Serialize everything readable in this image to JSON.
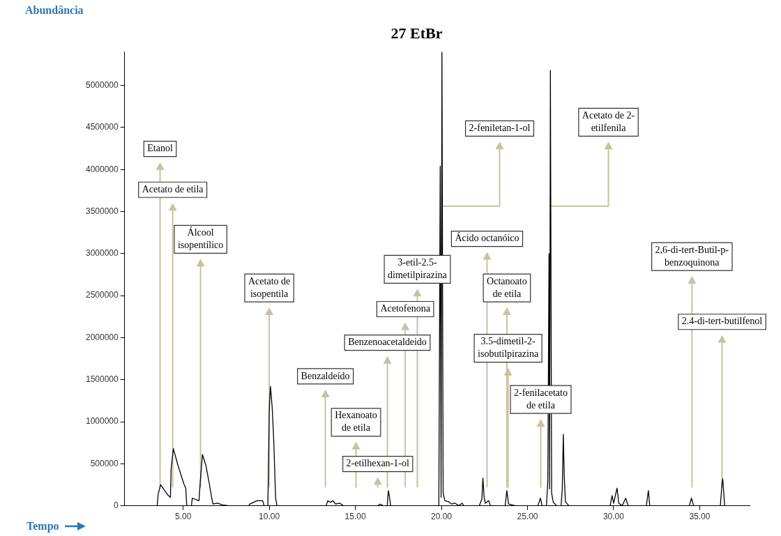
{
  "chart_data": {
    "type": "line",
    "title": "27 EtBr",
    "xlabel": "Tempo",
    "ylabel": "Abundância",
    "xlim": [
      1.6,
      37.9
    ],
    "ylim": [
      0,
      5400000
    ],
    "xticks": [
      {
        "value": 5,
        "label": "5.00"
      },
      {
        "value": 10,
        "label": "10.00"
      },
      {
        "value": 15,
        "label": "15.00"
      },
      {
        "value": 20,
        "label": "20.00"
      },
      {
        "value": 25,
        "label": "25.00"
      },
      {
        "value": 30,
        "label": "30.00"
      },
      {
        "value": 35,
        "label": "35.00"
      }
    ],
    "yticks": [
      0,
      500000,
      1000000,
      1500000,
      2000000,
      2500000,
      3000000,
      3500000,
      4000000,
      4500000,
      5000000
    ],
    "series": [
      {
        "color": "#000000",
        "x": [
          1.6,
          3.49,
          3.55,
          3.69,
          4.1,
          4.26,
          4.3,
          4.43,
          4.7,
          5.04,
          5.15,
          5.21,
          5.48,
          5.53,
          5.92,
          5.99,
          6.12,
          6.32,
          6.52,
          6.66,
          6.73,
          7.0,
          7.27,
          7.67,
          8.8,
          8.88,
          9.29,
          9.62,
          9.7,
          9.92,
          10.0,
          10.07,
          10.17,
          10.26,
          10.37,
          10.45,
          13.3,
          13.4,
          13.55,
          13.7,
          13.85,
          14.1,
          14.3,
          16.3,
          16.45,
          16.6,
          16.85,
          16.92,
          16.98,
          17.05,
          19.85,
          19.93,
          19.98,
          20.03,
          20.1,
          20.2,
          20.4,
          20.6,
          20.8,
          21.0,
          21.2,
          21.3,
          22.2,
          22.35,
          22.41,
          22.48,
          22.55,
          22.75,
          22.85,
          23.7,
          23.8,
          23.9,
          24.3,
          25.6,
          25.75,
          25.85,
          26.1,
          26.18,
          26.25,
          26.28,
          26.33,
          26.4,
          26.5,
          26.7,
          26.95,
          27.02,
          27.08,
          27.13,
          27.2,
          27.4,
          29.8,
          29.91,
          30.0,
          30.2,
          30.3,
          30.5,
          30.7,
          30.85,
          31.9,
          32.02,
          32.1,
          34.4,
          34.52,
          34.65,
          36.2,
          36.3,
          36.34,
          36.45,
          37.9
        ],
        "values": [
          0,
          0,
          140000,
          250000,
          130000,
          100000,
          430000,
          680000,
          480000,
          260000,
          210000,
          0,
          0,
          90000,
          60000,
          280000,
          610000,
          480000,
          260000,
          90000,
          20000,
          30000,
          10000,
          0,
          0,
          20000,
          60000,
          60000,
          0,
          0,
          1140000,
          1420000,
          1170000,
          780000,
          90000,
          0,
          0,
          60000,
          40000,
          60000,
          20000,
          30000,
          0,
          0,
          20000,
          0,
          0,
          180000,
          110000,
          0,
          0,
          4040000,
          100000,
          5400000,
          150000,
          60000,
          50000,
          20000,
          30000,
          0,
          30000,
          0,
          0,
          80000,
          330000,
          100000,
          30000,
          60000,
          0,
          0,
          180000,
          20000,
          0,
          0,
          90000,
          0,
          0,
          300000,
          3000000,
          200000,
          5180000,
          150000,
          40000,
          0,
          0,
          200000,
          850000,
          380000,
          50000,
          0,
          0,
          120000,
          30000,
          210000,
          30000,
          0,
          90000,
          0,
          0,
          180000,
          0,
          0,
          90000,
          0,
          0,
          270000,
          320000,
          0,
          0
        ]
      }
    ],
    "annotations": [
      "Etanol",
      "Acetato de etila",
      "Álcool\nisopentílico",
      "Acetato de\nisopentila",
      "Benzaldeído",
      "Hexanoato\nde etila",
      "2-etilhexan-1-ol",
      "Benzenoacetaldeido",
      "Acetofenona",
      "3-etil-2.5-\ndimetilpirazina",
      "2-feniletan-1-ol",
      "Ácido octanóico",
      "Octanoato\nde etila",
      "3.5-dimetil-2-\nisobutilpirazina",
      "2-fenilacetato\nde etila",
      "Acetato de 2-\netilfenila",
      "2,6-di-tert-Butil-p-\nbenzoquinona",
      "2.4-di-tert-butilfenol"
    ]
  }
}
